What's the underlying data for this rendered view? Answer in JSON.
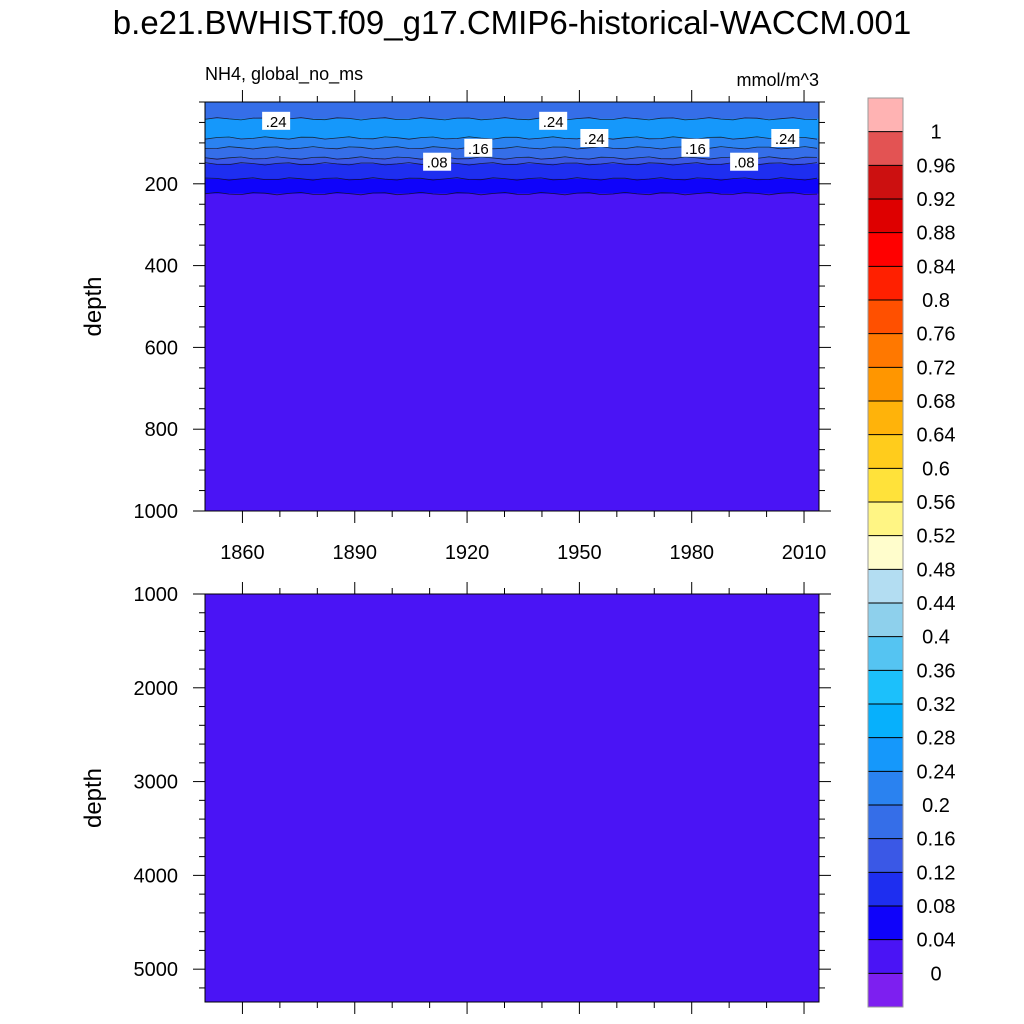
{
  "title": "b.e21.BWHIST.f09_g17.CMIP6-historical-WACCM.001",
  "chart_data": [
    {
      "type": "heatmap",
      "panel": "upper",
      "left_subtitle": "NH4, global_no_ms",
      "right_subtitle": "mmol/m^3",
      "ylabel": "depth",
      "xlabel": "",
      "xlim": [
        1850,
        2014
      ],
      "ylim": [
        0,
        1000
      ],
      "y_reversed": true,
      "x_ticks": [
        1860,
        1890,
        1920,
        1950,
        1980,
        2010
      ],
      "x_tick_labels": [
        "1860",
        "1890",
        "1920",
        "1950",
        "1980",
        "2010"
      ],
      "y_ticks": [
        200,
        400,
        600,
        800,
        1000
      ],
      "y_tick_labels": [
        "200",
        "400",
        "600",
        "800",
        "1000"
      ],
      "bands": [
        {
          "depth_top": 0,
          "depth_bottom": 41,
          "value_range": [
            0.16,
            0.2
          ]
        },
        {
          "depth_top": 41,
          "depth_bottom": 88,
          "value_range": [
            0.24,
            0.28
          ]
        },
        {
          "depth_top": 88,
          "depth_bottom": 112,
          "value_range": [
            0.2,
            0.24
          ]
        },
        {
          "depth_top": 112,
          "depth_bottom": 137,
          "value_range": [
            0.16,
            0.2
          ]
        },
        {
          "depth_top": 137,
          "depth_bottom": 151,
          "value_range": [
            0.12,
            0.16
          ]
        },
        {
          "depth_top": 151,
          "depth_bottom": 188,
          "value_range": [
            0.08,
            0.12
          ]
        },
        {
          "depth_top": 188,
          "depth_bottom": 224,
          "value_range": [
            0.04,
            0.08
          ]
        },
        {
          "depth_top": 224,
          "depth_bottom": 1000,
          "value_range": [
            0,
            0.04
          ]
        }
      ],
      "contour_labels": [
        {
          "text": ".24",
          "year": 1869,
          "depth": 46
        },
        {
          "text": ".24",
          "year": 1943,
          "depth": 46
        },
        {
          "text": ".24",
          "year": 1954,
          "depth": 88
        },
        {
          "text": ".24",
          "year": 2005,
          "depth": 88
        },
        {
          "text": ".16",
          "year": 1923,
          "depth": 112
        },
        {
          "text": ".16",
          "year": 1981,
          "depth": 112
        },
        {
          "text": ".08",
          "year": 1912,
          "depth": 146
        },
        {
          "text": ".08",
          "year": 1994,
          "depth": 146
        }
      ]
    },
    {
      "type": "heatmap",
      "panel": "lower",
      "ylabel": "depth",
      "xlim": [
        1850,
        2014
      ],
      "ylim": [
        1000,
        5350
      ],
      "y_reversed": true,
      "y_ticks": [
        1000,
        2000,
        3000,
        4000,
        5000
      ],
      "y_tick_labels": [
        "1000",
        "2000",
        "3000",
        "4000",
        "5000"
      ],
      "bands": [
        {
          "depth_top": 1000,
          "depth_bottom": 5350,
          "value_range": [
            0,
            0.04
          ]
        }
      ]
    }
  ],
  "colorbar": {
    "labels": [
      "0",
      "0.04",
      "0.08",
      "0.12",
      "0.16",
      "0.2",
      "0.24",
      "0.28",
      "0.32",
      "0.36",
      "0.4",
      "0.44",
      "0.48",
      "0.52",
      "0.56",
      "0.6",
      "0.64",
      "0.68",
      "0.72",
      "0.76",
      "0.8",
      "0.84",
      "0.88",
      "0.92",
      "0.96",
      "1"
    ],
    "colors": [
      "#7d1ff0",
      "#4a14f5",
      "#0f03fa",
      "#1e2ef0",
      "#3a58e6",
      "#356ee8",
      "#2a82f0",
      "#1598fb",
      "#07b0fc",
      "#1cc0fb",
      "#55c4f2",
      "#8ed0ec",
      "#b3ddf2",
      "#fffdcc",
      "#fff584",
      "#ffe23a",
      "#ffcc1c",
      "#ffb30a",
      "#ff9600",
      "#ff7800",
      "#ff5000",
      "#ff2000",
      "#ff0000",
      "#de0000",
      "#cc1010",
      "#e35353",
      "#ffb3b3"
    ]
  }
}
